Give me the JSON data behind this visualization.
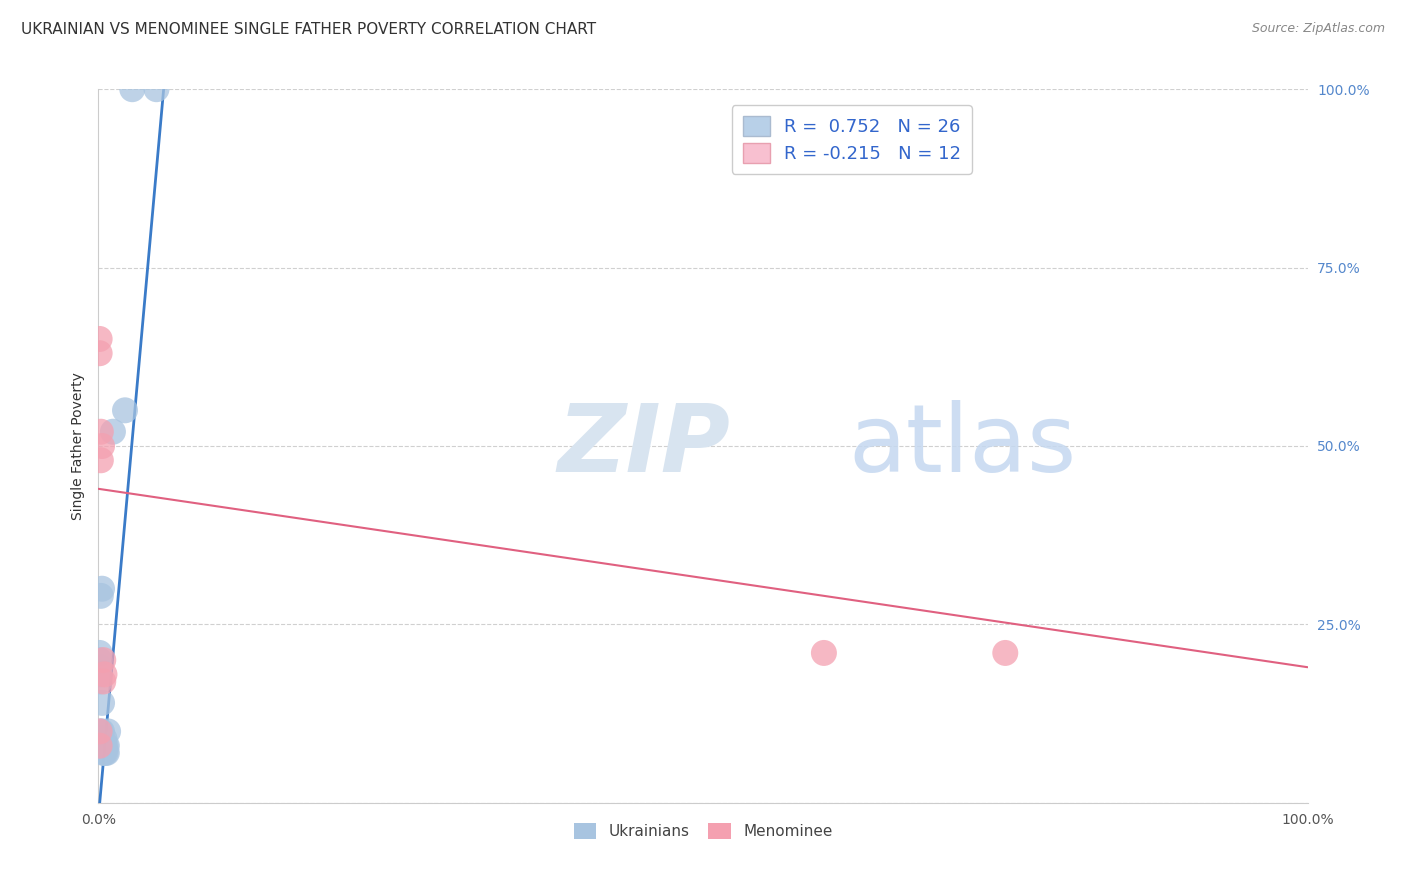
{
  "title": "UKRAINIAN VS MENOMINEE SINGLE FATHER POVERTY CORRELATION CHART",
  "source": "Source: ZipAtlas.com",
  "ylabel": "Single Father Poverty",
  "legend_blue_r": "0.752",
  "legend_blue_n": "26",
  "legend_pink_r": "-0.215",
  "legend_pink_n": "12",
  "blue_color": "#a8c4e0",
  "pink_color": "#f4a0b0",
  "blue_line_color": "#3a7bc8",
  "pink_line_color": "#e06080",
  "grid_color": "#d0d0d0",
  "background_color": "#ffffff",
  "blue_x": [
    0.001,
    0.001,
    0.001,
    0.001,
    0.001,
    0.002,
    0.002,
    0.002,
    0.003,
    0.003,
    0.003,
    0.003,
    0.004,
    0.004,
    0.005,
    0.005,
    0.005,
    0.006,
    0.006,
    0.007,
    0.007,
    0.008,
    0.012,
    0.022,
    0.028,
    0.048
  ],
  "blue_y": [
    0.17,
    0.18,
    0.19,
    0.2,
    0.21,
    0.09,
    0.1,
    0.29,
    0.08,
    0.1,
    0.14,
    0.3,
    0.07,
    0.08,
    0.07,
    0.08,
    0.09,
    0.07,
    0.08,
    0.07,
    0.08,
    0.1,
    0.52,
    0.55,
    1.0,
    1.0
  ],
  "pink_x": [
    0.001,
    0.001,
    0.002,
    0.002,
    0.003,
    0.004,
    0.004,
    0.005,
    0.6,
    0.75,
    0.001,
    0.001
  ],
  "pink_y": [
    0.63,
    0.65,
    0.48,
    0.52,
    0.5,
    0.17,
    0.2,
    0.18,
    0.21,
    0.21,
    0.08,
    0.1
  ],
  "blue_line_x0": 0.0,
  "blue_line_y0": -0.02,
  "blue_line_x1": 0.055,
  "blue_line_y1": 1.02,
  "pink_line_x0": 0.0,
  "pink_line_y0": 0.44,
  "pink_line_x1": 1.0,
  "pink_line_y1": 0.19,
  "xlim": [
    0.0,
    1.0
  ],
  "ylim": [
    0.0,
    1.0
  ],
  "xtick_vals": [
    0.0,
    0.2,
    0.4,
    0.6,
    0.8,
    1.0
  ],
  "xtick_labels": [
    "0.0%",
    "",
    "",
    "",
    "",
    "100.0%"
  ],
  "ytick_vals": [
    0.0,
    0.25,
    0.5,
    0.75,
    1.0
  ],
  "ytick_labels": [
    "",
    "25.0%",
    "50.0%",
    "75.0%",
    "100.0%"
  ]
}
